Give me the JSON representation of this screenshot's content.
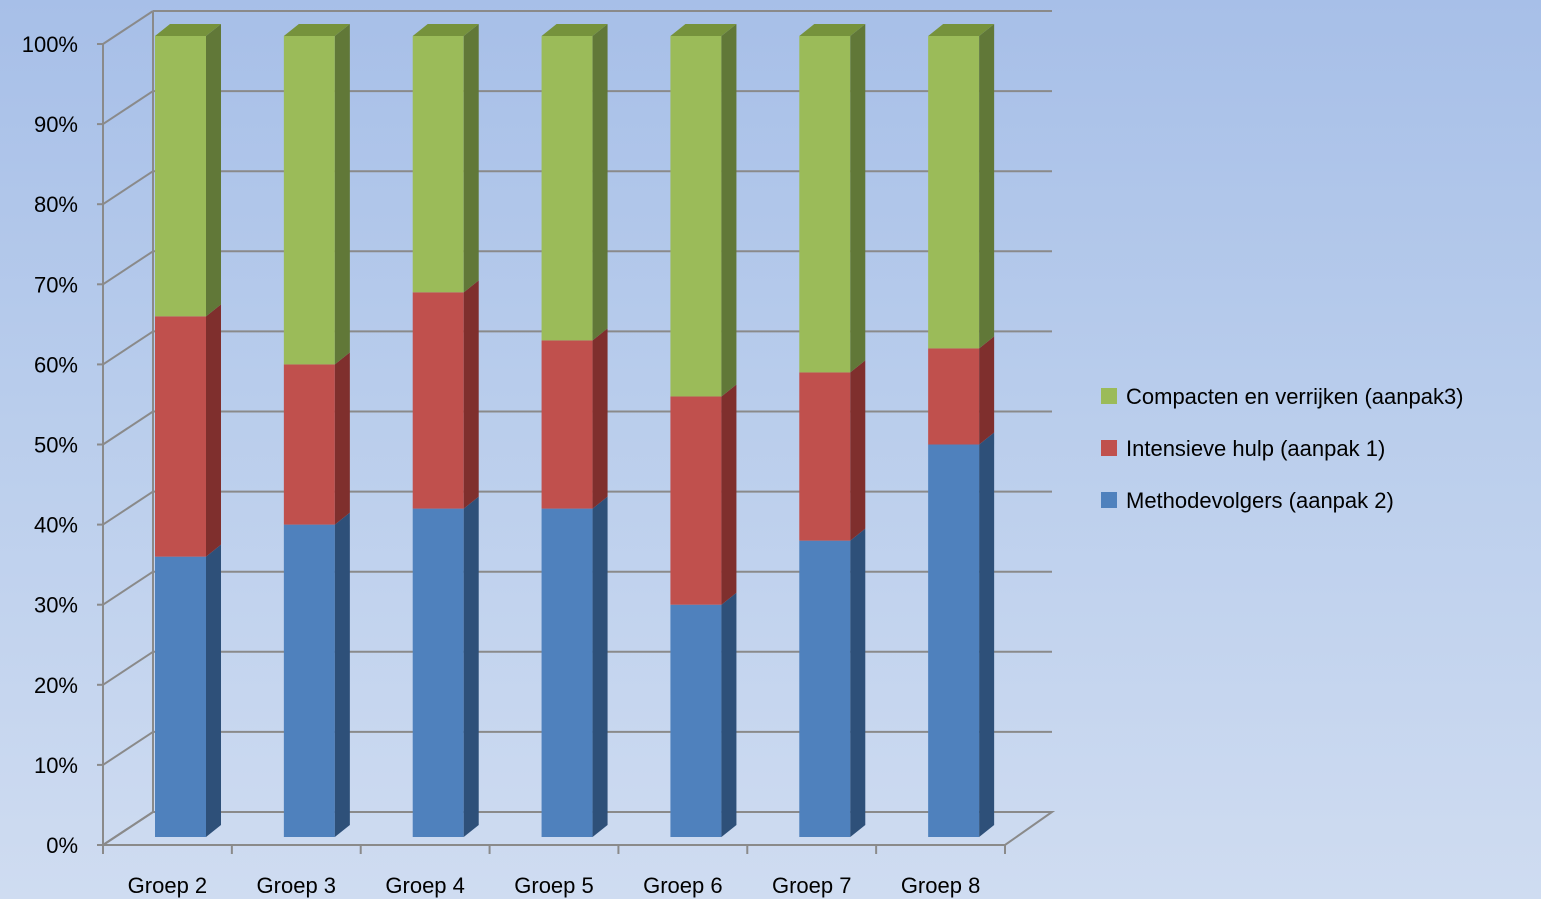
{
  "chart_data": {
    "type": "bar",
    "stacked": true,
    "percent": true,
    "three_d": true,
    "categories": [
      "Groep 2",
      "Groep 3",
      "Groep 4",
      "Groep 5",
      "Groep 6",
      "Groep 7",
      "Groep 8"
    ],
    "series": [
      {
        "name": "Methodevolgers (aanpak 2)",
        "values": [
          35,
          39,
          41,
          41,
          29,
          37,
          49
        ],
        "color": "#4f81bd",
        "side_color": "#2e5079",
        "top_color": "#385d8a"
      },
      {
        "name": "Intensieve hulp (aanpak 1)",
        "values": [
          30,
          20,
          27,
          21,
          26,
          21,
          12
        ],
        "color": "#c0504d",
        "side_color": "#7f2f2d",
        "top_color": "#943634"
      },
      {
        "name": "Compacten en verrijken (aanpak3)",
        "values": [
          35,
          41,
          32,
          38,
          45,
          42,
          39
        ],
        "color": "#9bbb59",
        "side_color": "#617838",
        "top_color": "#76923c"
      }
    ],
    "y_ticks": [
      "0%",
      "10%",
      "20%",
      "30%",
      "40%",
      "50%",
      "60%",
      "70%",
      "80%",
      "90%",
      "100%"
    ],
    "ylim": [
      0,
      100
    ],
    "grid": true,
    "legend": {
      "position": "right",
      "order": [
        "Compacten en verrijken (aanpak3)",
        "Intensieve hulp (aanpak 1)",
        "Methodevolgers (aanpak 2)"
      ]
    },
    "title": "",
    "xlabel": "",
    "ylabel": ""
  }
}
